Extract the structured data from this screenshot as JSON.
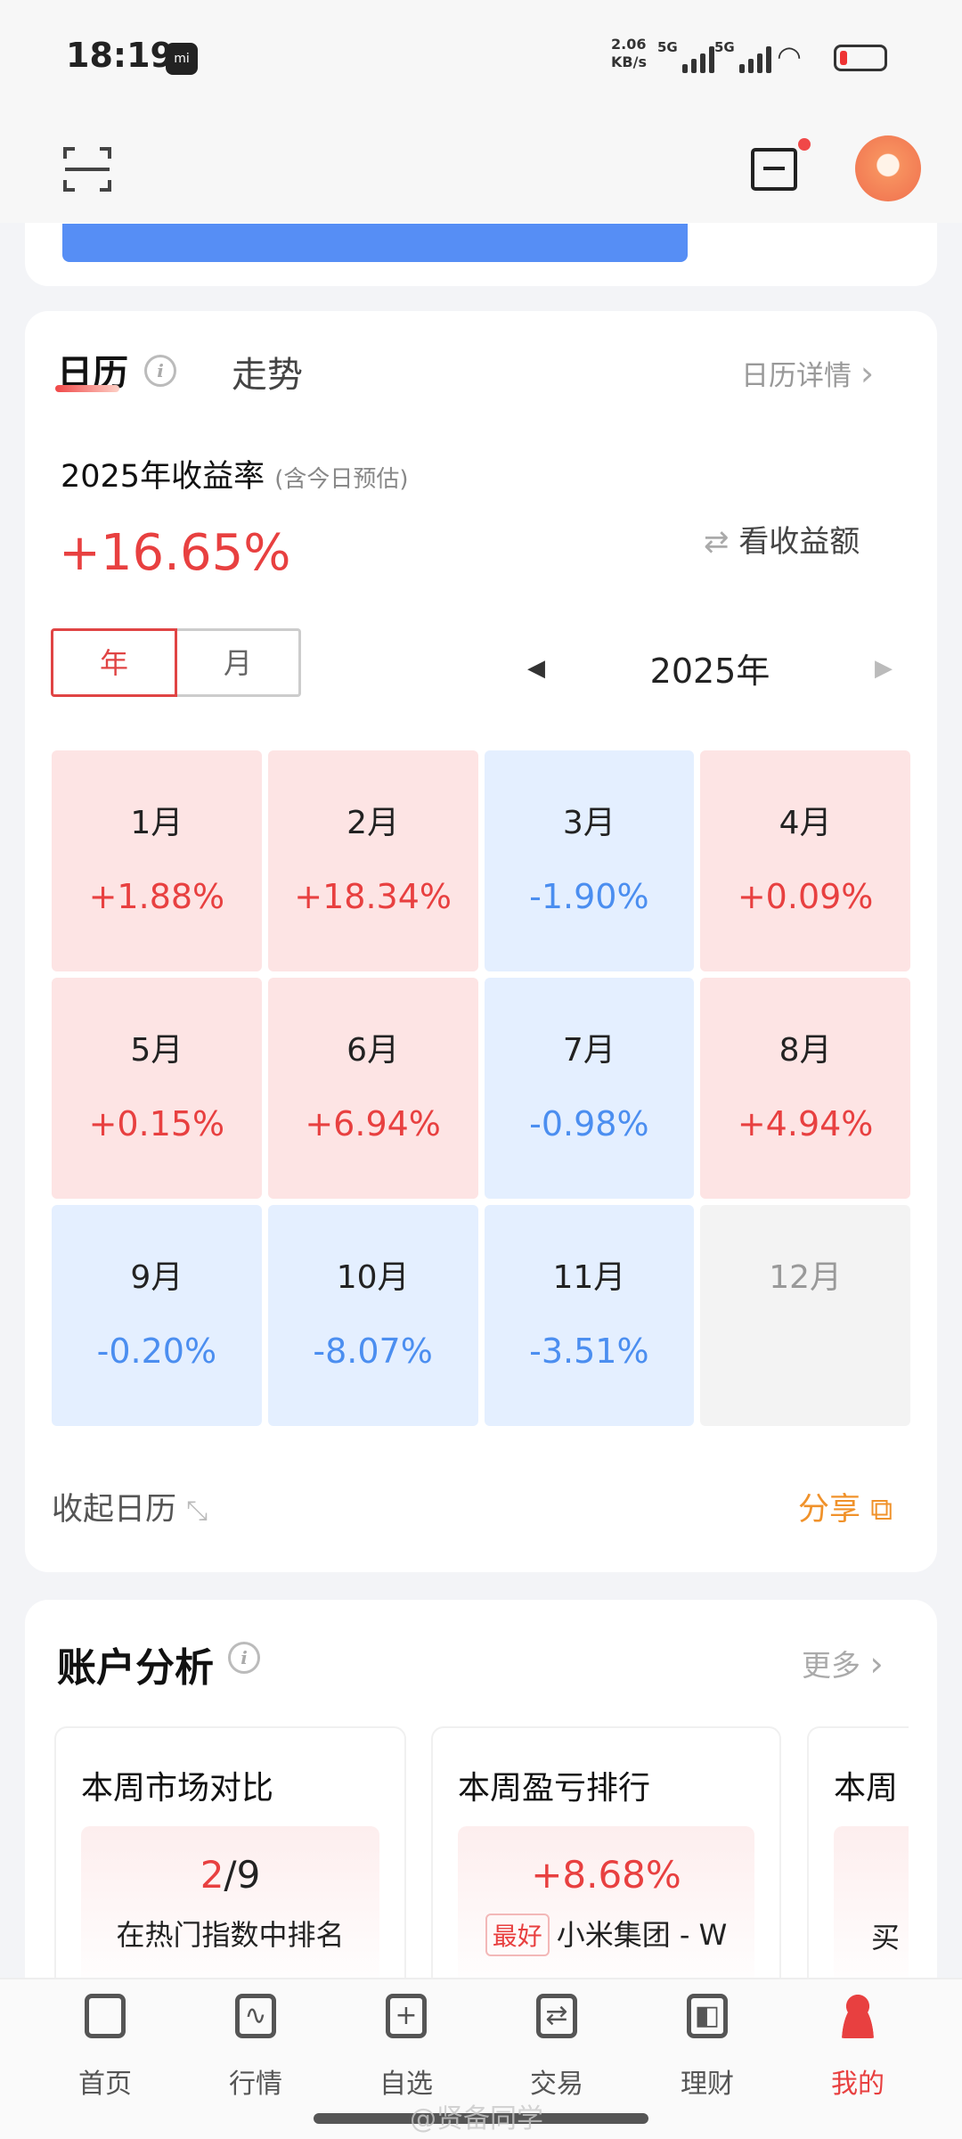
{
  "status_bar": {
    "time": "18:19",
    "speed": "2.06",
    "speed_unit": "KB/s",
    "net1": "5G",
    "net2": "5G"
  },
  "colors": {
    "up": "#e84040",
    "down": "#4b8ef0",
    "accent": "#f0922b",
    "blue_banner": "#568ef5"
  },
  "calendar": {
    "tabs": [
      "日历",
      "走势"
    ],
    "detail_link": "日历详情",
    "title": "2025年收益率",
    "title_note": "(含今日预估)",
    "total": "+16.65%",
    "toggle": "看收益额",
    "modes": [
      "年",
      "月"
    ],
    "year": "2025年",
    "months": [
      {
        "label": "1月",
        "value": "+1.88%",
        "trend": "up"
      },
      {
        "label": "2月",
        "value": "+18.34%",
        "trend": "up"
      },
      {
        "label": "3月",
        "value": "-1.90%",
        "trend": "down"
      },
      {
        "label": "4月",
        "value": "+0.09%",
        "trend": "up"
      },
      {
        "label": "5月",
        "value": "+0.15%",
        "trend": "up"
      },
      {
        "label": "6月",
        "value": "+6.94%",
        "trend": "up"
      },
      {
        "label": "7月",
        "value": "-0.98%",
        "trend": "down"
      },
      {
        "label": "8月",
        "value": "+4.94%",
        "trend": "up"
      },
      {
        "label": "9月",
        "value": "-0.20%",
        "trend": "down"
      },
      {
        "label": "10月",
        "value": "-8.07%",
        "trend": "down"
      },
      {
        "label": "11月",
        "value": "-3.51%",
        "trend": "down"
      },
      {
        "label": "12月",
        "value": "",
        "trend": "none"
      }
    ],
    "collapse": "收起日历",
    "share": "分享"
  },
  "analysis": {
    "title": "账户分析",
    "more": "更多",
    "cards": [
      {
        "title": "本周市场对比",
        "rank": "2",
        "rank_total": "/9",
        "desc": "在热门指数中排名"
      },
      {
        "title": "本周盈亏排行",
        "value": "+8.68%",
        "tag": "最好",
        "desc": "小米集团 - W"
      },
      {
        "title": "本周",
        "desc": "买"
      }
    ]
  },
  "nav": [
    {
      "label": "首页"
    },
    {
      "label": "行情"
    },
    {
      "label": "自选"
    },
    {
      "label": "交易"
    },
    {
      "label": "理财"
    },
    {
      "label": "我的",
      "active": true
    }
  ],
  "watermark": "@贤备同学"
}
